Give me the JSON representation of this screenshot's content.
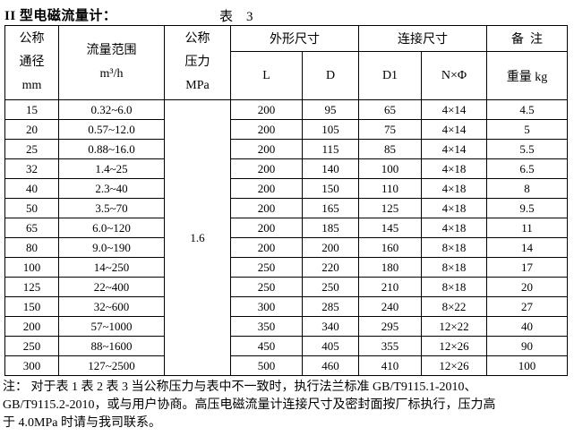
{
  "page": {
    "title": "II 型电磁流量计：",
    "table_caption": "表　3"
  },
  "table": {
    "headers": {
      "dn": "公称\n通径\nmm",
      "flow_range": "流量范围\nm³/h",
      "pressure": "公称\n压力\nMPa",
      "dimensions_group": "外形尺寸",
      "connection_group": "连接尺寸",
      "remark_group": "备  注",
      "l": "L",
      "d": "D",
      "d1": "D1",
      "n_phi": "N×Φ",
      "weight": "重量 kg"
    },
    "pressure_value": "1.6",
    "rows": [
      {
        "dn": "15",
        "range": "0.32~6.0",
        "l": "200",
        "d": "95",
        "d1": "65",
        "n_phi": "4×14",
        "weight": "4.5"
      },
      {
        "dn": "20",
        "range": "0.57~12.0",
        "l": "200",
        "d": "105",
        "d1": "75",
        "n_phi": "4×14",
        "weight": "5"
      },
      {
        "dn": "25",
        "range": "0.88~16.0",
        "l": "200",
        "d": "115",
        "d1": "85",
        "n_phi": "4×14",
        "weight": "5.5"
      },
      {
        "dn": "32",
        "range": "1.4~25",
        "l": "200",
        "d": "140",
        "d1": "100",
        "n_phi": "4×18",
        "weight": "6.5"
      },
      {
        "dn": "40",
        "range": "2.3~40",
        "l": "200",
        "d": "150",
        "d1": "110",
        "n_phi": "4×18",
        "weight": "8"
      },
      {
        "dn": "50",
        "range": "3.5~70",
        "l": "200",
        "d": "165",
        "d1": "125",
        "n_phi": "4×18",
        "weight": "9.5"
      },
      {
        "dn": "65",
        "range": "6.0~120",
        "l": "200",
        "d": "185",
        "d1": "145",
        "n_phi": "4×18",
        "weight": "11"
      },
      {
        "dn": "80",
        "range": "9.0~190",
        "l": "200",
        "d": "200",
        "d1": "160",
        "n_phi": "8×18",
        "weight": "14"
      },
      {
        "dn": "100",
        "range": "14~250",
        "l": "250",
        "d": "220",
        "d1": "180",
        "n_phi": "8×18",
        "weight": "17"
      },
      {
        "dn": "125",
        "range": "22~400",
        "l": "250",
        "d": "250",
        "d1": "210",
        "n_phi": "8×18",
        "weight": "20"
      },
      {
        "dn": "150",
        "range": "32~600",
        "l": "300",
        "d": "285",
        "d1": "240",
        "n_phi": "8×22",
        "weight": "27"
      },
      {
        "dn": "200",
        "range": "57~1000",
        "l": "350",
        "d": "340",
        "d1": "295",
        "n_phi": "12×22",
        "weight": "40"
      },
      {
        "dn": "250",
        "range": "88~1600",
        "l": "450",
        "d": "405",
        "d1": "355",
        "n_phi": "12×26",
        "weight": "90"
      },
      {
        "dn": "300",
        "range": "127~2500",
        "l": "500",
        "d": "460",
        "d1": "410",
        "n_phi": "12×26",
        "weight": "100"
      }
    ]
  },
  "footer": {
    "note": "注：  对于表 1 表 2 表 3 当公称压力与表中不一致时，执行法兰标准 GB/T9115.1-2010、\nGB/T9115.2-2010，或与用户协商。高压电磁流量计连接尺寸及密封面按厂标执行，压力高\n于 4.0MPa 时请与我司联系。"
  }
}
